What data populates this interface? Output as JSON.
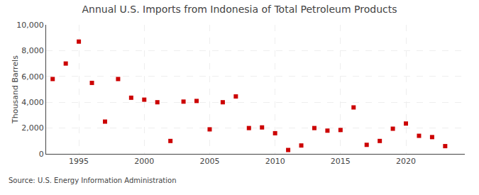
{
  "chart_data": {
    "type": "scatter",
    "title": "Annual U.S. Imports from Indonesia of Total Petroleum Products",
    "ylabel": "Thousand Barrels",
    "annotations": [
      "Source: U.S. Energy Information Administration"
    ],
    "x": [
      1993,
      1994,
      1995,
      1996,
      1997,
      1998,
      1999,
      2000,
      2001,
      2002,
      2003,
      2004,
      2005,
      2006,
      2007,
      2008,
      2009,
      2010,
      2011,
      2012,
      2013,
      2014,
      2015,
      2016,
      2017,
      2018,
      2019,
      2020,
      2021,
      2022,
      2023
    ],
    "values": [
      5800,
      7000,
      8700,
      5500,
      2500,
      5800,
      4350,
      4200,
      4000,
      1000,
      4050,
      4100,
      1900,
      4000,
      4450,
      2000,
      2050,
      1600,
      300,
      650,
      2000,
      1800,
      1850,
      3600,
      700,
      1000,
      1950,
      2350,
      1400,
      1300,
      600
    ],
    "color": "#cc0000",
    "marker": "square",
    "xlim": [
      1992.5,
      2024.5
    ],
    "xticks": [
      1995,
      2000,
      2005,
      2010,
      2015,
      2020
    ],
    "ylim": [
      0,
      10000
    ],
    "yticks": [
      0,
      {
        "value": 2000,
        "label": "2,000"
      },
      {
        "value": 4000,
        "label": "4,000"
      },
      {
        "value": 6000,
        "label": "6,000"
      },
      {
        "value": 8000,
        "label": "8,000"
      },
      {
        "value": 10000,
        "label": "10,000"
      }
    ],
    "grid": true
  }
}
